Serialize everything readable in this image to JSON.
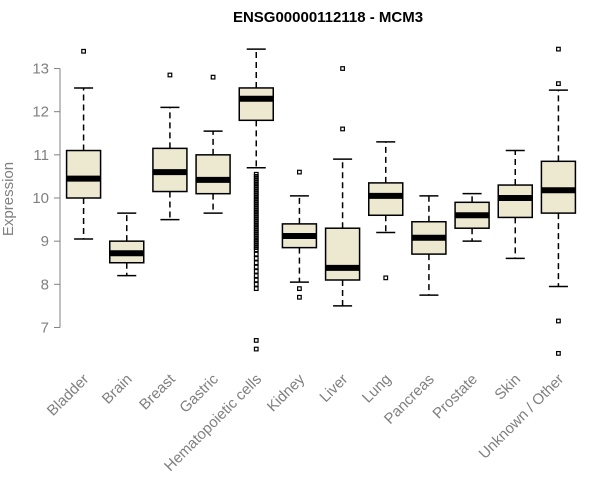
{
  "chart_data": {
    "type": "box",
    "title": "ENSG00000112118 - MCM3",
    "ylabel": "Expression",
    "xlabel": "",
    "ylim": [
      6.2,
      13.8
    ],
    "yticks": [
      7,
      8,
      9,
      10,
      11,
      12,
      13
    ],
    "categories": [
      "Bladder",
      "Brain",
      "Breast",
      "Gastric",
      "Hematopoietic cells",
      "Kidney",
      "Liver",
      "Lung",
      "Pancreas",
      "Prostate",
      "Skin",
      "Unknown / Other"
    ],
    "boxes": [
      {
        "category": "Bladder",
        "whisker_low": 9.05,
        "q1": 10.0,
        "median": 10.45,
        "q3": 11.1,
        "whisker_high": 12.55,
        "outliers": [
          13.4
        ]
      },
      {
        "category": "Brain",
        "whisker_low": 8.2,
        "q1": 8.5,
        "median": 8.72,
        "q3": 9.0,
        "whisker_high": 9.65,
        "outliers": []
      },
      {
        "category": "Breast",
        "whisker_low": 9.5,
        "q1": 10.15,
        "median": 10.6,
        "q3": 11.15,
        "whisker_high": 12.1,
        "outliers": [
          12.85
        ]
      },
      {
        "category": "Gastric",
        "whisker_low": 9.65,
        "q1": 10.1,
        "median": 10.42,
        "q3": 11.0,
        "whisker_high": 11.55,
        "outliers": [
          12.8
        ]
      },
      {
        "category": "Hematopoietic cells",
        "whisker_low": 10.7,
        "q1": 11.8,
        "median": 12.3,
        "q3": 12.55,
        "whisker_high": 13.45,
        "outliers": [
          10.55,
          10.5,
          10.45,
          10.4,
          10.35,
          10.3,
          10.25,
          10.2,
          10.15,
          10.1,
          10.05,
          10.0,
          9.95,
          9.9,
          9.85,
          9.8,
          9.75,
          9.7,
          9.65,
          9.6,
          9.55,
          9.5,
          9.45,
          9.4,
          9.35,
          9.3,
          9.25,
          9.2,
          9.15,
          9.1,
          9.05,
          9.0,
          8.95,
          8.9,
          8.85,
          8.8,
          8.7,
          8.6,
          8.5,
          8.4,
          8.3,
          8.2,
          8.1,
          8.0,
          7.9,
          6.7,
          6.5
        ]
      },
      {
        "category": "Kidney",
        "whisker_low": 8.05,
        "q1": 8.85,
        "median": 9.12,
        "q3": 9.4,
        "whisker_high": 10.05,
        "outliers": [
          10.6,
          7.9,
          7.7
        ]
      },
      {
        "category": "Liver",
        "whisker_low": 7.5,
        "q1": 8.1,
        "median": 8.38,
        "q3": 9.3,
        "whisker_high": 10.9,
        "outliers": [
          13.0,
          11.6
        ]
      },
      {
        "category": "Lung",
        "whisker_low": 9.2,
        "q1": 9.6,
        "median": 10.05,
        "q3": 10.35,
        "whisker_high": 11.3,
        "outliers": [
          8.15
        ]
      },
      {
        "category": "Pancreas",
        "whisker_low": 7.75,
        "q1": 8.7,
        "median": 9.08,
        "q3": 9.45,
        "whisker_high": 10.05,
        "outliers": []
      },
      {
        "category": "Prostate",
        "whisker_low": 9.0,
        "q1": 9.3,
        "median": 9.6,
        "q3": 9.9,
        "whisker_high": 10.1,
        "outliers": []
      },
      {
        "category": "Skin",
        "whisker_low": 8.6,
        "q1": 9.55,
        "median": 10.0,
        "q3": 10.3,
        "whisker_high": 11.1,
        "outliers": []
      },
      {
        "category": "Unknown / Other",
        "whisker_low": 7.95,
        "q1": 9.65,
        "median": 10.18,
        "q3": 10.85,
        "whisker_high": 12.5,
        "outliers": [
          13.45,
          12.65,
          7.15,
          6.4
        ]
      }
    ],
    "box_fill": "#ede8d0",
    "grid": false,
    "legend": "none"
  }
}
